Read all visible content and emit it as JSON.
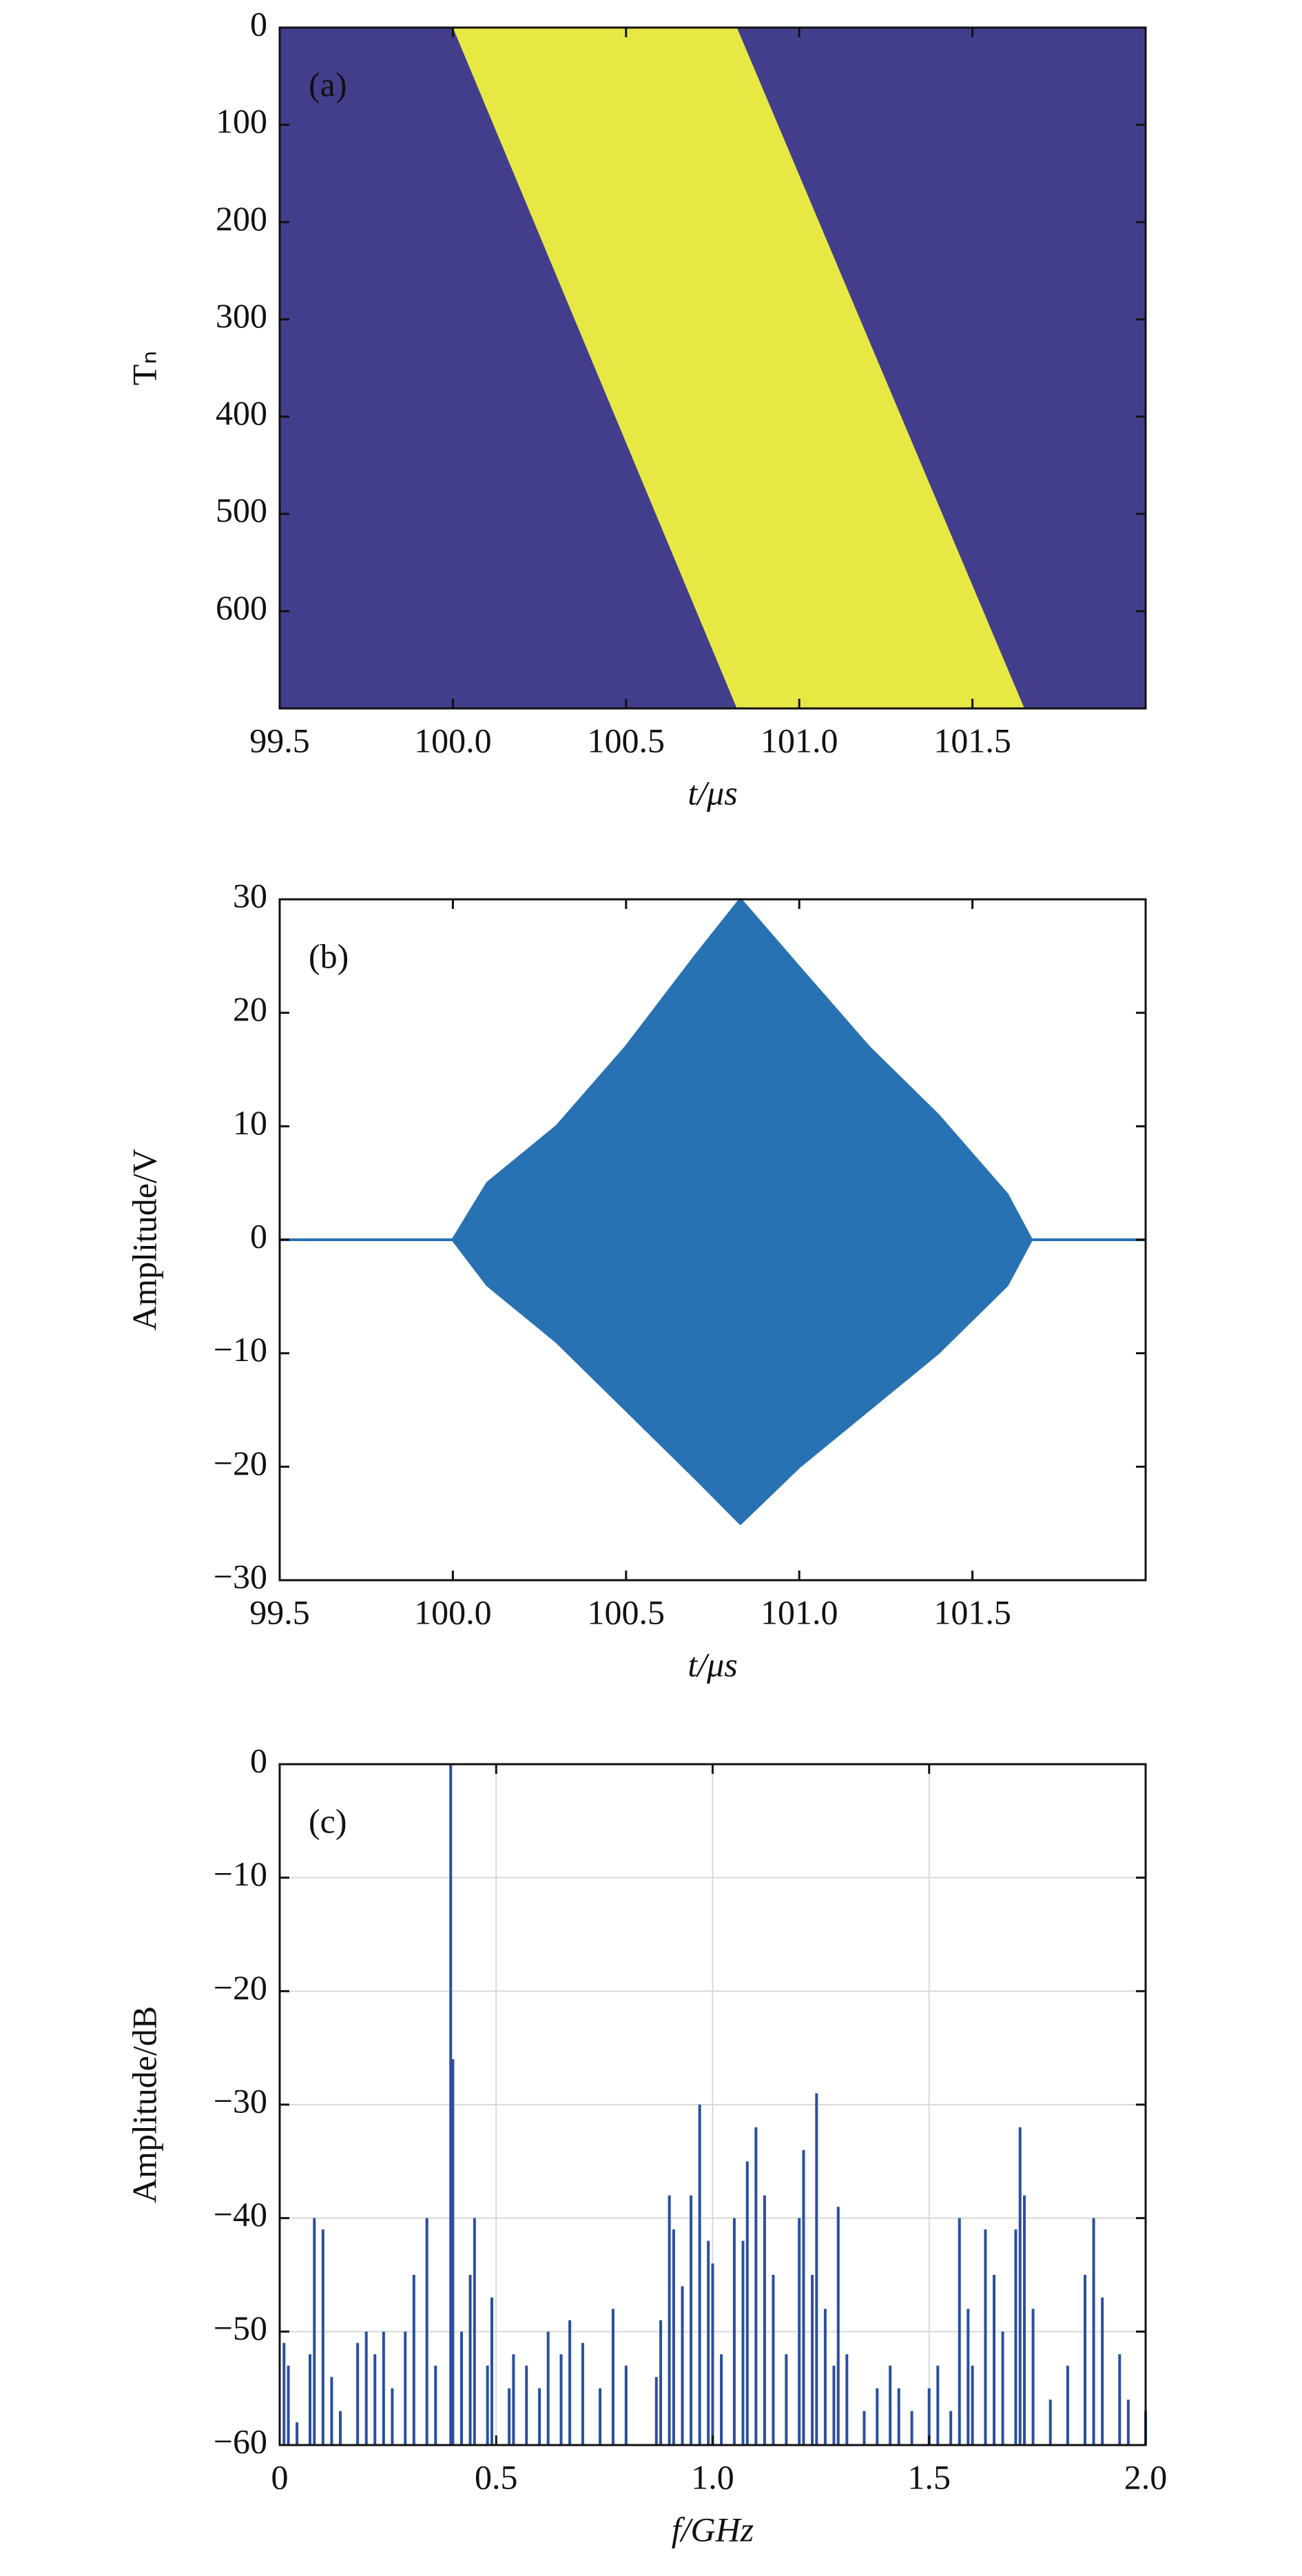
{
  "chart_data": [
    {
      "type": "band",
      "annotation": "(a)",
      "xlabel": "t/μs",
      "ylabel": "Tₙ",
      "x_left": [
        100.0,
        100.82
      ],
      "x_right": [
        100.82,
        101.65
      ],
      "y": [
        0,
        700
      ],
      "color": "#e8e845",
      "background": "#433e8c",
      "xlim": [
        99.5,
        102.0
      ],
      "xticks": [
        99.5,
        {
          "value": 100,
          "label": "100.0"
        },
        100.5,
        {
          "value": 101,
          "label": "101.0"
        },
        101.5
      ],
      "ylim": [
        0,
        700
      ],
      "yticks": [
        0,
        100,
        200,
        300,
        400,
        500,
        600
      ],
      "y_reversed": true,
      "grid": false
    },
    {
      "type": "area",
      "annotation": "(b)",
      "xlabel": "t/μs",
      "ylabel": "Amplitude/V",
      "x": [
        99.5,
        100.0,
        100.1,
        100.3,
        100.5,
        100.7,
        100.83,
        101.0,
        101.2,
        101.4,
        101.6,
        101.67,
        102.0
      ],
      "upper": [
        0,
        0,
        5,
        10,
        17,
        25,
        30,
        24,
        17,
        11,
        4,
        0,
        0
      ],
      "lower": [
        0,
        0,
        -4,
        -9,
        -15,
        -21,
        -25,
        -20,
        -15,
        -10,
        -4,
        0,
        0
      ],
      "color": "#2872b4",
      "xlim": [
        99.5,
        102.0
      ],
      "xticks": [
        99.5,
        {
          "value": 100,
          "label": "100.0"
        },
        100.5,
        {
          "value": 101,
          "label": "101.0"
        },
        101.5
      ],
      "ylim": [
        -30,
        30
      ],
      "yticks": [
        {
          "value": -30,
          "label": "−30"
        },
        {
          "value": -20,
          "label": "−20"
        },
        {
          "value": -10,
          "label": "−10"
        },
        0,
        10,
        20,
        30
      ],
      "grid": false
    },
    {
      "type": "stem",
      "annotation": "(c)",
      "xlabel": "f/GHz",
      "ylabel": "Amplitude/dB",
      "x": [
        0.01,
        0.02,
        0.04,
        0.07,
        0.08,
        0.1,
        0.12,
        0.14,
        0.18,
        0.2,
        0.22,
        0.24,
        0.26,
        0.29,
        0.31,
        0.34,
        0.36,
        0.395,
        0.4,
        0.42,
        0.44,
        0.45,
        0.48,
        0.49,
        0.53,
        0.54,
        0.57,
        0.6,
        0.62,
        0.65,
        0.67,
        0.7,
        0.74,
        0.77,
        0.8,
        0.87,
        0.88,
        0.9,
        0.91,
        0.93,
        0.95,
        0.97,
        0.99,
        1.0,
        1.02,
        1.05,
        1.07,
        1.08,
        1.1,
        1.12,
        1.14,
        1.17,
        1.2,
        1.21,
        1.23,
        1.24,
        1.26,
        1.28,
        1.29,
        1.31,
        1.35,
        1.38,
        1.41,
        1.43,
        1.46,
        1.5,
        1.52,
        1.55,
        1.57,
        1.59,
        1.6,
        1.63,
        1.65,
        1.67,
        1.7,
        1.71,
        1.72,
        1.74,
        1.78,
        1.82,
        1.86,
        1.88,
        1.9,
        1.94,
        1.96,
        2.0
      ],
      "values": [
        -51,
        -53,
        -58,
        -52,
        -40,
        -41,
        -54,
        -57,
        -51,
        -50,
        -52,
        -50,
        -55,
        -50,
        -45,
        -40,
        -53,
        0,
        -26,
        -50,
        -45,
        -40,
        -53,
        -47,
        -55,
        -52,
        -53,
        -55,
        -50,
        -52,
        -49,
        -51,
        -55,
        -48,
        -53,
        -54,
        -49,
        -38,
        -41,
        -46,
        -38,
        -30,
        -42,
        -44,
        -52,
        -40,
        -42,
        -35,
        -32,
        -38,
        -45,
        -52,
        -40,
        -34,
        -45,
        -29,
        -48,
        -53,
        -39,
        -52,
        -57,
        -55,
        -53,
        -55,
        -57,
        -55,
        -53,
        -57,
        -40,
        -48,
        -53,
        -41,
        -45,
        -50,
        -41,
        -32,
        -38,
        -48,
        -56,
        -53,
        -45,
        -40,
        -47,
        -52,
        -56,
        -57
      ],
      "color": "#2a4fa0",
      "xlim": [
        0,
        2.0
      ],
      "xticks": [
        0,
        0.5,
        {
          "value": 1,
          "label": "1.0"
        },
        1.5,
        {
          "value": 2,
          "label": "2.0"
        }
      ],
      "ylim": [
        -60,
        0
      ],
      "yticks": [
        {
          "value": -60,
          "label": "−60"
        },
        {
          "value": -50,
          "label": "−50"
        },
        {
          "value": -40,
          "label": "−40"
        },
        {
          "value": -30,
          "label": "−30"
        },
        {
          "value": -20,
          "label": "−20"
        },
        {
          "value": -10,
          "label": "−10"
        },
        0
      ],
      "grid": true
    }
  ]
}
